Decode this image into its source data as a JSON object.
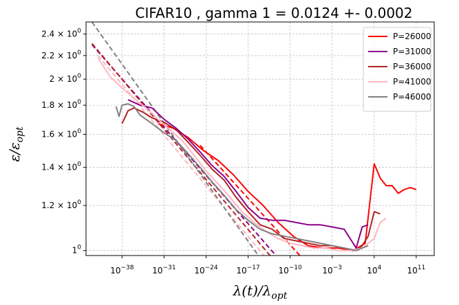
{
  "chart_data": {
    "type": "line",
    "title": "CIFAR10 , gamma 1 = 0.0124 +- 0.0002",
    "xlabel": "λ(t)/λ",
    "xlabel_sub": "opt",
    "ylabel": "ε/ε",
    "ylabel_sub": "opt",
    "xscale": "log",
    "yscale": "log",
    "xlim_exp": [
      -44,
      14
    ],
    "ylim": [
      0.98,
      2.52
    ],
    "grid": true,
    "legend_position": "top-right",
    "x_ticks": [
      {
        "base": "10",
        "exp": "−38",
        "value_exp": -38
      },
      {
        "base": "10",
        "exp": "−31",
        "value_exp": -31
      },
      {
        "base": "10",
        "exp": "−24",
        "value_exp": -24
      },
      {
        "base": "10",
        "exp": "−17",
        "value_exp": -17
      },
      {
        "base": "10",
        "exp": "−10",
        "value_exp": -10
      },
      {
        "base": "10",
        "exp": "−3",
        "value_exp": -3
      },
      {
        "base": "10",
        "exp": "4",
        "value_exp": 4
      },
      {
        "base": "10",
        "exp": "11",
        "value_exp": 11
      }
    ],
    "y_ticks": [
      {
        "mant": "1",
        "exp": "0",
        "value": 1.0
      },
      {
        "mant": "1.2 × 10",
        "exp": "0",
        "value": 1.2
      },
      {
        "mant": "1.4 × 10",
        "exp": "0",
        "value": 1.4
      },
      {
        "mant": "1.6 × 10",
        "exp": "0",
        "value": 1.6
      },
      {
        "mant": "1.8 × 10",
        "exp": "0",
        "value": 1.8
      },
      {
        "mant": "2 × 10",
        "exp": "0",
        "value": 2.0
      },
      {
        "mant": "2.2 × 10",
        "exp": "0",
        "value": 2.2
      },
      {
        "mant": "2.4 × 10",
        "exp": "0",
        "value": 2.4
      }
    ],
    "series": [
      {
        "name": "P=26000",
        "color": "#ff0000",
        "x_exp": [
          -32,
          -29.5,
          -27,
          -24.5,
          -22,
          -19.5,
          -17,
          -14.5,
          -12,
          -9.5,
          -7,
          -4.5,
          -2,
          0.5,
          2.5,
          4,
          5,
          6,
          7,
          8,
          9,
          10,
          11
        ],
        "y": [
          1.67,
          1.64,
          1.58,
          1.5,
          1.44,
          1.36,
          1.27,
          1.2,
          1.12,
          1.06,
          1.02,
          1.01,
          1.01,
          1.0,
          1.03,
          1.42,
          1.34,
          1.3,
          1.3,
          1.26,
          1.28,
          1.29,
          1.28
        ],
        "fit_x_exp": [
          -25,
          -8
        ],
        "fit_y": [
          1.53,
          0.97
        ]
      },
      {
        "name": "P=31000",
        "color": "#8b008b",
        "x_exp": [
          -37,
          -35,
          -33,
          -31,
          -29,
          -27,
          -25,
          -23,
          -21,
          -19,
          -17,
          -15,
          -13,
          -11,
          -9,
          -7,
          -5,
          -3,
          -1,
          1,
          2,
          3
        ],
        "y": [
          1.84,
          1.8,
          1.78,
          1.7,
          1.64,
          1.57,
          1.49,
          1.41,
          1.35,
          1.27,
          1.19,
          1.14,
          1.13,
          1.13,
          1.12,
          1.11,
          1.11,
          1.1,
          1.09,
          1.01,
          1.1,
          1.11
        ],
        "fit_x_exp": [
          -43,
          -12
        ],
        "fit_y": [
          2.3,
          0.97
        ]
      },
      {
        "name": "P=36000",
        "color": "#b22222",
        "x_exp": [
          -38,
          -37,
          -36,
          -34.5,
          -33,
          -31,
          -29,
          -27,
          -25,
          -23,
          -21,
          -19,
          -17,
          -15,
          -13,
          -11,
          -9,
          -7,
          -5,
          -3,
          -1,
          1,
          2,
          3,
          4,
          5
        ],
        "y": [
          1.67,
          1.76,
          1.78,
          1.75,
          1.71,
          1.68,
          1.63,
          1.55,
          1.47,
          1.39,
          1.33,
          1.24,
          1.17,
          1.11,
          1.09,
          1.05,
          1.04,
          1.03,
          1.02,
          1.02,
          1.01,
          1.0,
          1.02,
          1.06,
          1.17,
          1.16
        ],
        "fit_x_exp": [
          -43,
          -13
        ],
        "fit_y": [
          2.31,
          0.97
        ]
      },
      {
        "name": "P=41000",
        "color": "#ffb6c1",
        "x_exp": [
          -42,
          -40,
          -38,
          -36,
          -34,
          -32,
          -30,
          -28,
          -26,
          -24,
          -22,
          -20,
          -18,
          -16,
          -14,
          -12,
          -10,
          -8,
          -6,
          -4,
          -2,
          0,
          2,
          4,
          5,
          6
        ],
        "y": [
          2.18,
          2.02,
          1.93,
          1.85,
          1.78,
          1.7,
          1.63,
          1.56,
          1.47,
          1.38,
          1.31,
          1.24,
          1.17,
          1.12,
          1.08,
          1.05,
          1.03,
          1.02,
          1.01,
          1.01,
          1.0,
          1.0,
          1.01,
          1.05,
          1.12,
          1.14
        ],
        "fit_x_exp": [
          -42,
          -14
        ],
        "fit_y": [
          2.2,
          0.97
        ]
      },
      {
        "name": "P=46000",
        "color": "#808080",
        "x_exp": [
          -39,
          -38.5,
          -38,
          -37,
          -36,
          -35,
          -33,
          -31,
          -29,
          -27,
          -25,
          -23,
          -21,
          -19,
          -17,
          -15,
          -13,
          -11,
          -9,
          -7,
          -5,
          -3,
          -1,
          1,
          3
        ],
        "y": [
          1.79,
          1.72,
          1.8,
          1.81,
          1.79,
          1.73,
          1.67,
          1.61,
          1.56,
          1.48,
          1.4,
          1.32,
          1.25,
          1.18,
          1.13,
          1.09,
          1.07,
          1.06,
          1.05,
          1.04,
          1.03,
          1.02,
          1.01,
          1.0,
          1.02
        ],
        "fit_x_exp": [
          -43,
          -15
        ],
        "fit_y": [
          2.52,
          0.97
        ]
      }
    ]
  }
}
